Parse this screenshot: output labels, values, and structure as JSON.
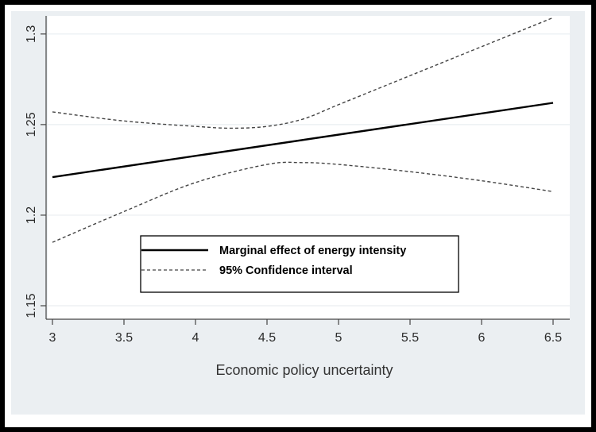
{
  "chart_data": {
    "type": "line",
    "xlabel": "Economic policy uncertainty",
    "ylabel": "",
    "xlim": [
      3,
      6.5
    ],
    "ylim": [
      1.15,
      1.31
    ],
    "xticks": [
      3,
      3.5,
      4,
      4.5,
      5,
      5.5,
      6,
      6.5
    ],
    "xtick_labels": [
      "3",
      "3.5",
      "4",
      "4.5",
      "5",
      "5.5",
      "6",
      "6.5"
    ],
    "yticks": [
      1.15,
      1.2,
      1.25,
      1.3
    ],
    "ytick_labels": [
      "1.15",
      "1.2",
      "1.25",
      "1.3"
    ],
    "grid": "horizontal",
    "legend_position": "center",
    "series": [
      {
        "name": "Marginal effect of energy intensity",
        "style": "solid",
        "color": "#000000",
        "x": [
          3,
          6.5
        ],
        "y": [
          1.221,
          1.262
        ]
      },
      {
        "name": "95% Confidence interval",
        "style": "dashed",
        "color": "#444444",
        "x": [
          3,
          3.5,
          4,
          4.25,
          4.5,
          4.75,
          5,
          5.5,
          6,
          6.5
        ],
        "y": [
          1.257,
          1.252,
          1.249,
          1.248,
          1.249,
          1.253,
          1.261,
          1.277,
          1.293,
          1.309
        ]
      },
      {
        "name": "",
        "style": "dashed",
        "color": "#444444",
        "x": [
          3,
          3.5,
          4,
          4.5,
          4.75,
          5,
          5.5,
          6,
          6.5
        ],
        "y": [
          1.185,
          1.202,
          1.218,
          1.228,
          1.229,
          1.228,
          1.224,
          1.219,
          1.213
        ]
      }
    ]
  }
}
